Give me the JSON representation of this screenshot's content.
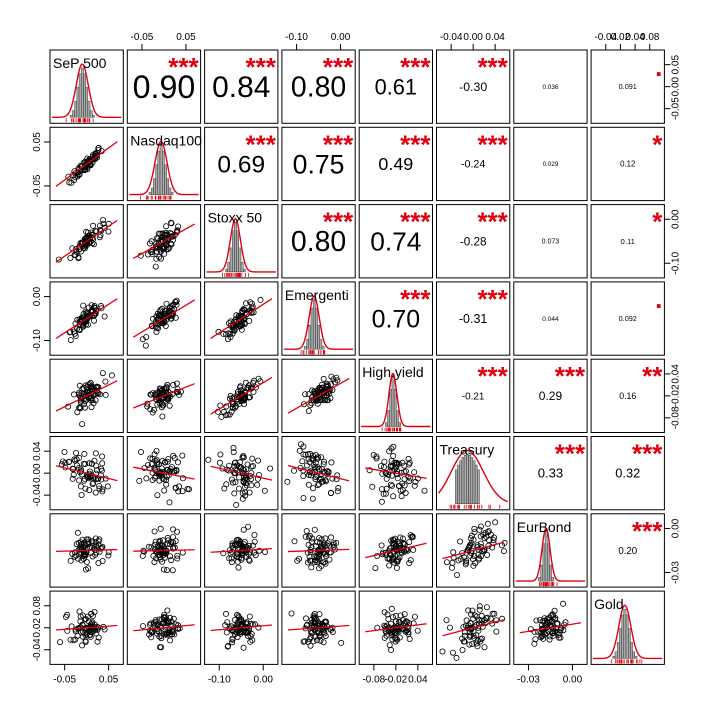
{
  "chart_data": {
    "type": "scatter",
    "title": "",
    "variables": [
      "SeP 500",
      "Nasdaq100",
      "Stoxx 50",
      "Emergenti",
      "High.yield",
      "Treasury",
      "EurBond",
      "Gold"
    ],
    "correlations": [
      {
        "row": 1,
        "col": 2,
        "value": "0.90",
        "stars": "***"
      },
      {
        "row": 1,
        "col": 3,
        "value": "0.84",
        "stars": "***"
      },
      {
        "row": 1,
        "col": 4,
        "value": "0.80",
        "stars": "***"
      },
      {
        "row": 1,
        "col": 5,
        "value": "0.61",
        "stars": "***"
      },
      {
        "row": 1,
        "col": 6,
        "value": "-0.30",
        "stars": "***"
      },
      {
        "row": 1,
        "col": 7,
        "value": "0.036",
        "stars": ""
      },
      {
        "row": 1,
        "col": 8,
        "value": "0.091",
        "stars": "."
      },
      {
        "row": 2,
        "col": 3,
        "value": "0.69",
        "stars": "***"
      },
      {
        "row": 2,
        "col": 4,
        "value": "0.75",
        "stars": "***"
      },
      {
        "row": 2,
        "col": 5,
        "value": "0.49",
        "stars": "***"
      },
      {
        "row": 2,
        "col": 6,
        "value": "-0.24",
        "stars": "***"
      },
      {
        "row": 2,
        "col": 7,
        "value": "0.029",
        "stars": ""
      },
      {
        "row": 2,
        "col": 8,
        "value": "0.12",
        "stars": "*"
      },
      {
        "row": 3,
        "col": 4,
        "value": "0.80",
        "stars": "***"
      },
      {
        "row": 3,
        "col": 5,
        "value": "0.74",
        "stars": "***"
      },
      {
        "row": 3,
        "col": 6,
        "value": "-0.28",
        "stars": "***"
      },
      {
        "row": 3,
        "col": 7,
        "value": "0.073",
        "stars": ""
      },
      {
        "row": 3,
        "col": 8,
        "value": "0.11",
        "stars": "*"
      },
      {
        "row": 4,
        "col": 5,
        "value": "0.70",
        "stars": "***"
      },
      {
        "row": 4,
        "col": 6,
        "value": "-0.31",
        "stars": "***"
      },
      {
        "row": 4,
        "col": 7,
        "value": "0.044",
        "stars": ""
      },
      {
        "row": 4,
        "col": 8,
        "value": "0.092",
        "stars": "."
      },
      {
        "row": 5,
        "col": 6,
        "value": "-0.21",
        "stars": "***"
      },
      {
        "row": 5,
        "col": 7,
        "value": "0.29",
        "stars": "***"
      },
      {
        "row": 5,
        "col": 8,
        "value": "0.16",
        "stars": "**"
      },
      {
        "row": 6,
        "col": 7,
        "value": "0.33",
        "stars": "***"
      },
      {
        "row": 6,
        "col": 8,
        "value": "0.32",
        "stars": "***"
      },
      {
        "row": 7,
        "col": 8,
        "value": "0.20",
        "stars": "***"
      }
    ],
    "axis_ticks": {
      "top": [
        {
          "col": 2,
          "labels": [
            "-0.05",
            "0.05"
          ]
        },
        {
          "col": 4,
          "labels": [
            "-0.10",
            "0.00"
          ]
        },
        {
          "col": 6,
          "labels": [
            "-0.04",
            "0.00",
            "0.04"
          ]
        },
        {
          "col": 8,
          "labels": [
            "-0.04",
            "0.02",
            "0.04",
            "0.08"
          ]
        }
      ],
      "bottom": [
        {
          "col": 1,
          "labels": [
            "-0.05",
            "0.05"
          ]
        },
        {
          "col": 3,
          "labels": [
            "-0.10",
            "0.00"
          ]
        },
        {
          "col": 5,
          "labels": [
            "-0.08",
            "-0.02",
            "0.04"
          ]
        },
        {
          "col": 7,
          "labels": [
            "-0.03",
            "0.00"
          ]
        }
      ],
      "left": [
        {
          "row": 2,
          "labels": [
            "0.05",
            "-0.05"
          ]
        },
        {
          "row": 4,
          "labels": [
            "0.00",
            "-0.10"
          ]
        },
        {
          "row": 6,
          "labels": [
            "0.04",
            "0.00",
            "-0.04"
          ]
        },
        {
          "row": 8,
          "labels": [
            "0.08",
            "0.02",
            "-0.04"
          ]
        }
      ],
      "right": [
        {
          "row": 1,
          "labels": [
            "0.05",
            "0.00",
            "-0.05"
          ]
        },
        {
          "row": 3,
          "labels": [
            "0.00",
            "-0.10"
          ]
        },
        {
          "row": 5,
          "labels": [
            "0.04",
            "-0.02",
            "-0.08"
          ]
        },
        {
          "row": 7,
          "labels": [
            "0.00",
            "-0.03"
          ]
        }
      ]
    },
    "colors": {
      "stars": "#e0000f",
      "fit_line": "#e0000f",
      "points": "#000000",
      "hist_fill": "#a9a9a9",
      "panel_border": "#000000"
    }
  }
}
